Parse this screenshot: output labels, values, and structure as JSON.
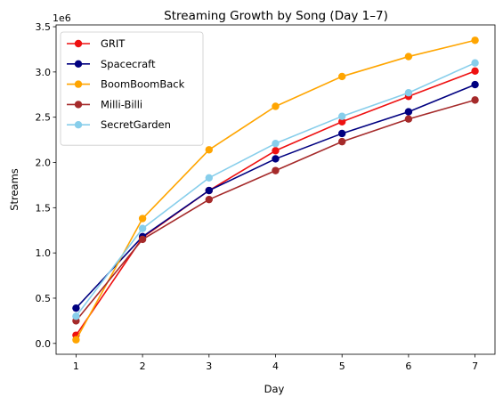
{
  "chart_data": {
    "type": "line",
    "title": "Streaming Growth by Song (Day 1–7)",
    "xlabel": "Day",
    "ylabel": "Streams",
    "y_offset_label": "1e6",
    "x": [
      1,
      2,
      3,
      4,
      5,
      6,
      7
    ],
    "xlim": [
      0.7,
      7.3
    ],
    "ylim": [
      -0.12,
      3.52
    ],
    "y_scale_factor": 1000000,
    "yticks": [
      0.0,
      0.5,
      1.0,
      1.5,
      2.0,
      2.5,
      3.0,
      3.5
    ],
    "ytick_labels": [
      "0.0",
      "0.5",
      "1.0",
      "1.5",
      "2.0",
      "2.5",
      "3.0",
      "3.5"
    ],
    "grid": false,
    "legend_position": "upper-left",
    "series": [
      {
        "name": "GRIT",
        "color": "#ee1111",
        "values": [
          90000,
          1170000,
          1690000,
          2130000,
          2450000,
          2730000,
          3010000
        ]
      },
      {
        "name": "Spacecraft",
        "color": "#000080",
        "values": [
          390000,
          1180000,
          1690000,
          2040000,
          2320000,
          2560000,
          2860000
        ]
      },
      {
        "name": "BoomBoomBack",
        "color": "#ffa500",
        "values": [
          40000,
          1380000,
          2140000,
          2620000,
          2950000,
          3170000,
          3350000
        ]
      },
      {
        "name": "Milli-Billi",
        "color": "#a52a2a",
        "values": [
          250000,
          1150000,
          1590000,
          1910000,
          2230000,
          2480000,
          2690000
        ]
      },
      {
        "name": "SecretGarden",
        "color": "#87ceeb",
        "values": [
          300000,
          1270000,
          1830000,
          2210000,
          2510000,
          2770000,
          3100000
        ]
      }
    ]
  }
}
